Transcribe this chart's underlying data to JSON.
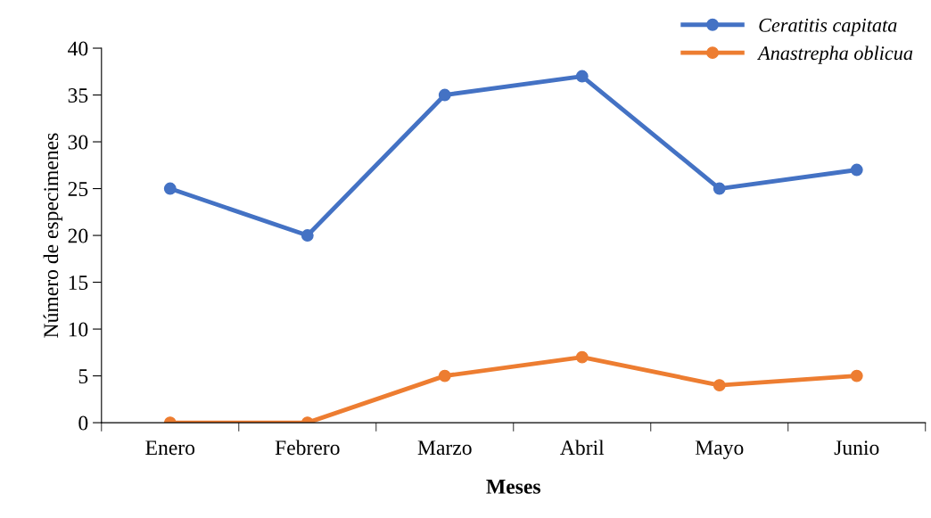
{
  "chart_data": {
    "type": "line",
    "xlabel": "Meses",
    "ylabel": "Número de especimenes",
    "categories": [
      "Enero",
      "Febrero",
      "Marzo",
      "Abril",
      "Mayo",
      "Junio"
    ],
    "series": [
      {
        "name": "Ceratitis capitata",
        "color": "#4472c4",
        "values": [
          25,
          20,
          35,
          37,
          25,
          27
        ]
      },
      {
        "name": "Anastrepha oblicua",
        "color": "#ed7d31",
        "values": [
          0,
          0,
          5,
          7,
          4,
          5
        ]
      }
    ],
    "ylim": [
      0,
      40
    ],
    "yticks": [
      0,
      5,
      10,
      15,
      20,
      25,
      30,
      35,
      40
    ],
    "grid": false,
    "legend": "top right",
    "marker": "circle",
    "line_style": "solid"
  }
}
